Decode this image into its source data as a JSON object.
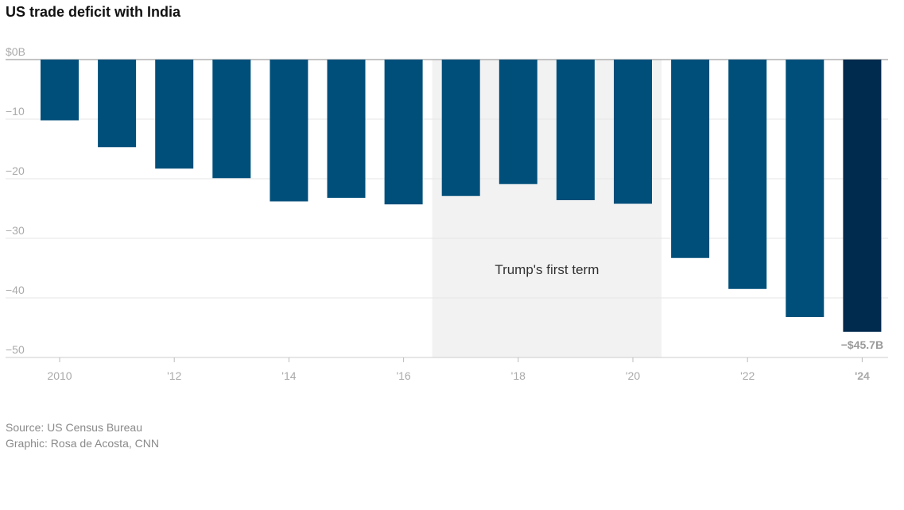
{
  "header": {
    "title": "US trade deficit with India"
  },
  "chart_data": {
    "type": "bar",
    "title": "US trade deficit with India",
    "xlabel": "",
    "ylabel": "",
    "x_tick_labels": [
      "2010",
      "'12",
      "'14",
      "'16",
      "'18",
      "'20",
      "'22",
      "'24"
    ],
    "x_tick_years": [
      2010,
      2012,
      2014,
      2016,
      2018,
      2020,
      2022,
      2024
    ],
    "y_ticks": [
      0,
      -10,
      -20,
      -30,
      -40,
      -50
    ],
    "y_tick_labels": [
      "$0B",
      "−10",
      "−20",
      "−30",
      "−40",
      "−50"
    ],
    "ylim": [
      -50,
      0
    ],
    "grid": true,
    "categories": [
      2010,
      2011,
      2012,
      2013,
      2014,
      2015,
      2016,
      2017,
      2018,
      2019,
      2020,
      2021,
      2022,
      2023,
      2024
    ],
    "values": [
      -10.2,
      -14.7,
      -18.3,
      -19.9,
      -23.8,
      -23.2,
      -24.3,
      -22.9,
      -20.9,
      -23.6,
      -24.2,
      -33.3,
      -38.5,
      -43.2,
      -45.7
    ],
    "bar_color": "#004f7a",
    "highlight_color": "#002a4e",
    "highlight_year": 2024,
    "value_label": "−$45.7B",
    "shaded_region": {
      "from_year": 2017,
      "to_year": 2020,
      "label": "Trump's first term",
      "color": "#f2f2f2"
    }
  },
  "footer": {
    "source": "Source: US Census Bureau",
    "graphic": "Graphic: Rosa de Acosta, CNN"
  }
}
